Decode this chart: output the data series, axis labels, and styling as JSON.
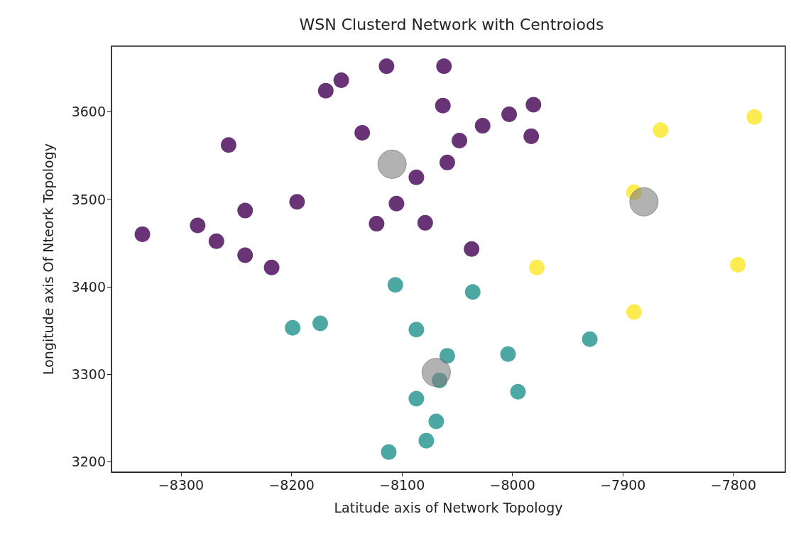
{
  "chart_data": {
    "type": "scatter",
    "title": "WSN Clusterd Network with Centroiods",
    "xlabel": "Latitude axis of Network Topology",
    "ylabel": "Longitude axis Of Nteork Topology",
    "xlim": [
      -8363,
      -7753
    ],
    "ylim": [
      3188,
      3675
    ],
    "xticks": [
      -8300,
      -8200,
      -8100,
      -8000,
      -7900,
      -7800
    ],
    "yticks": [
      3200,
      3300,
      3400,
      3500,
      3600
    ],
    "grid": false,
    "marker": "circle",
    "series": [
      {
        "color": "#440154",
        "x": [
          -8335,
          -8285,
          -8268,
          -8242,
          -8242,
          -8218,
          -8257,
          -8195,
          -8169,
          -8155,
          -8136,
          -8114,
          -8123,
          -8105,
          -8087,
          -8079,
          -8062,
          -8063,
          -8059,
          -8048,
          -8027,
          -8003,
          -7981,
          -7983,
          -8037
        ],
        "values": [
          3460,
          3470,
          3452,
          3487,
          3436,
          3422,
          3562,
          3497,
          3624,
          3636,
          3576,
          3652,
          3472,
          3495,
          3525,
          3473,
          3652,
          3607,
          3542,
          3567,
          3584,
          3597,
          3608,
          3572,
          3443
        ]
      },
      {
        "color": "#21918c",
        "x": [
          -8106,
          -8036,
          -8199,
          -8174,
          -8087,
          -8059,
          -8066,
          -8004,
          -7995,
          -7930,
          -8087,
          -8069,
          -8078,
          -8112
        ],
        "values": [
          3402,
          3394,
          3353,
          3358,
          3351,
          3321,
          3293,
          3323,
          3280,
          3340,
          3272,
          3246,
          3224,
          3211
        ]
      },
      {
        "color": "#fde725",
        "x": [
          -7866,
          -7781,
          -7890,
          -7978,
          -7796,
          -7890
        ],
        "values": [
          3579,
          3594,
          3508,
          3422,
          3425,
          3371
        ]
      },
      {
        "type": "bubble",
        "color": "#7f7f7f",
        "x": [
          -8109,
          -7881,
          -8069
        ],
        "values": [
          3540,
          3497,
          3302
        ],
        "sizes": [
          1,
          1,
          1
        ]
      }
    ]
  }
}
